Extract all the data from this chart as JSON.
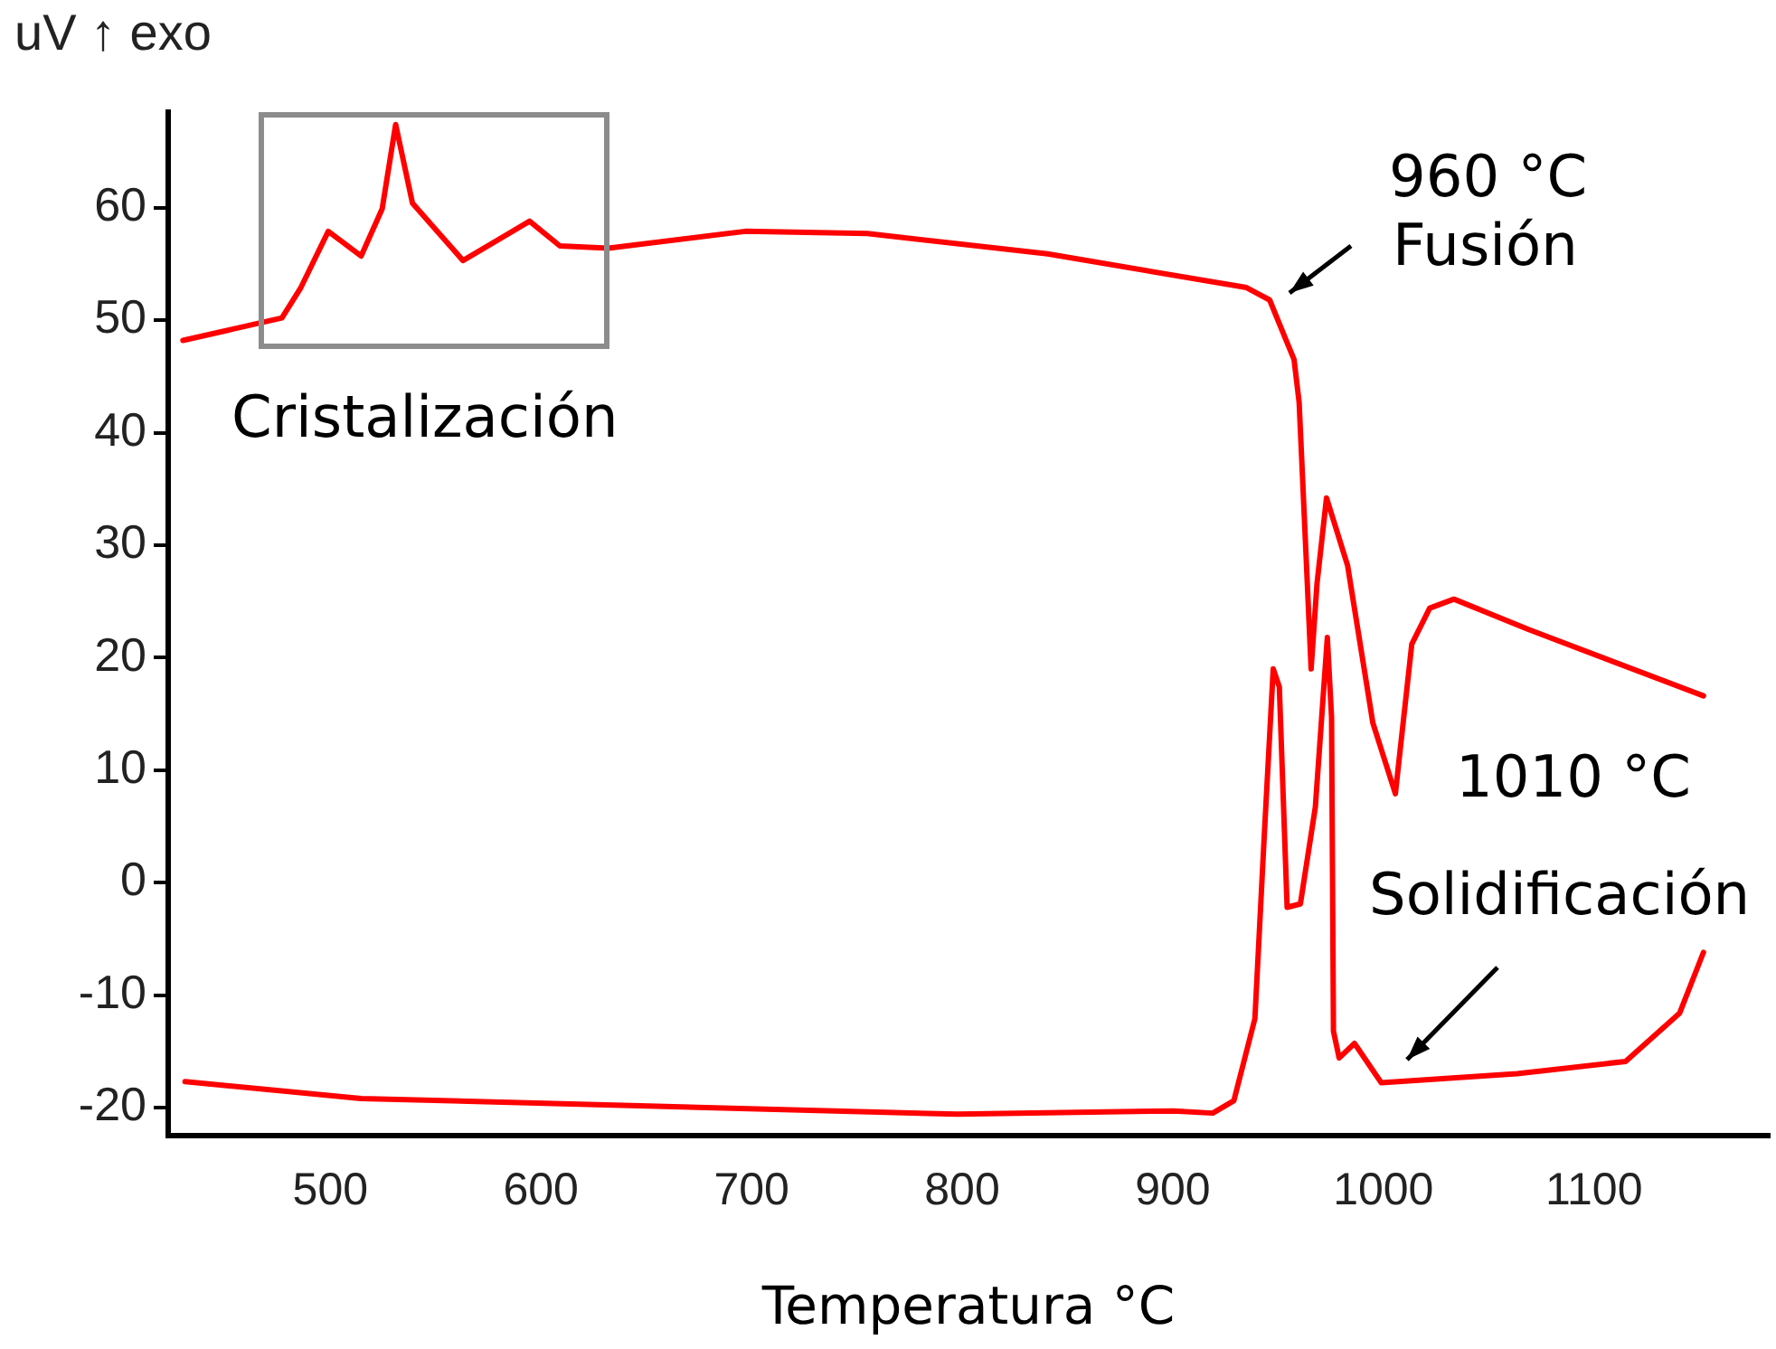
{
  "chart_data": {
    "type": "line",
    "xlabel": "Temperatura °C",
    "ylabel": "uV ↑ exo",
    "xlim": [
      423,
      1183
    ],
    "xticks": [
      500,
      600,
      700,
      800,
      900,
      1000,
      1100
    ],
    "ylim": [
      -22.5,
      68.5
    ],
    "yticks": [
      -20,
      -10,
      0,
      10,
      20,
      30,
      40,
      50,
      60
    ],
    "grid": false,
    "legend": false,
    "marker": "none",
    "line_style": "solid",
    "annotations": [
      "Cristalización",
      "960 °C",
      "Fusión",
      "1010 °C",
      "Solidificación"
    ],
    "series": [
      {
        "color": "#ff0000",
        "x": [
          430,
          477,
          486,
          499,
          514.6,
          524.6,
          531,
          539,
          563,
          594.6,
          609,
          632,
          697,
          755,
          840.5,
          935,
          946,
          953,
          957.6,
          960,
          963,
          965.7,
          968.5,
          973,
          983,
          995,
          1005.7,
          1013.5,
          1022,
          1033.5,
          1069,
          1152
        ],
        "values": [
          48.2,
          50.2,
          52.9,
          57.9,
          55.7,
          59.9,
          67.4,
          60.4,
          55.3,
          58.8,
          56.6,
          56.4,
          57.9,
          57.7,
          55.9,
          52.9,
          51.8,
          48.6,
          46.5,
          42.7,
          30.3,
          19.0,
          26.6,
          34.2,
          28.2,
          14.2,
          7.9,
          21.2,
          24.4,
          25.2,
          22.5,
          16.6
        ]
      },
      {
        "color": "#ff0000",
        "x": [
          431,
          514.6,
          797.6,
          900.5,
          919,
          929,
          939,
          943.4,
          947.7,
          950.6,
          954.3,
          960.6,
          967.7,
          973.4,
          975.4,
          976.3,
          979,
          986.3,
          999,
          1063.5,
          1115,
          1140.7,
          1152
        ],
        "values": [
          -17.7,
          -19.2,
          -20.6,
          -20.3,
          -20.5,
          -19.4,
          -12.1,
          4.0,
          19.0,
          17.4,
          -2.2,
          -1.9,
          6.7,
          21.8,
          14.7,
          -13.2,
          -15.6,
          -14.3,
          -17.8,
          -17.0,
          -15.9,
          -11.6,
          -6.2
        ]
      }
    ]
  }
}
